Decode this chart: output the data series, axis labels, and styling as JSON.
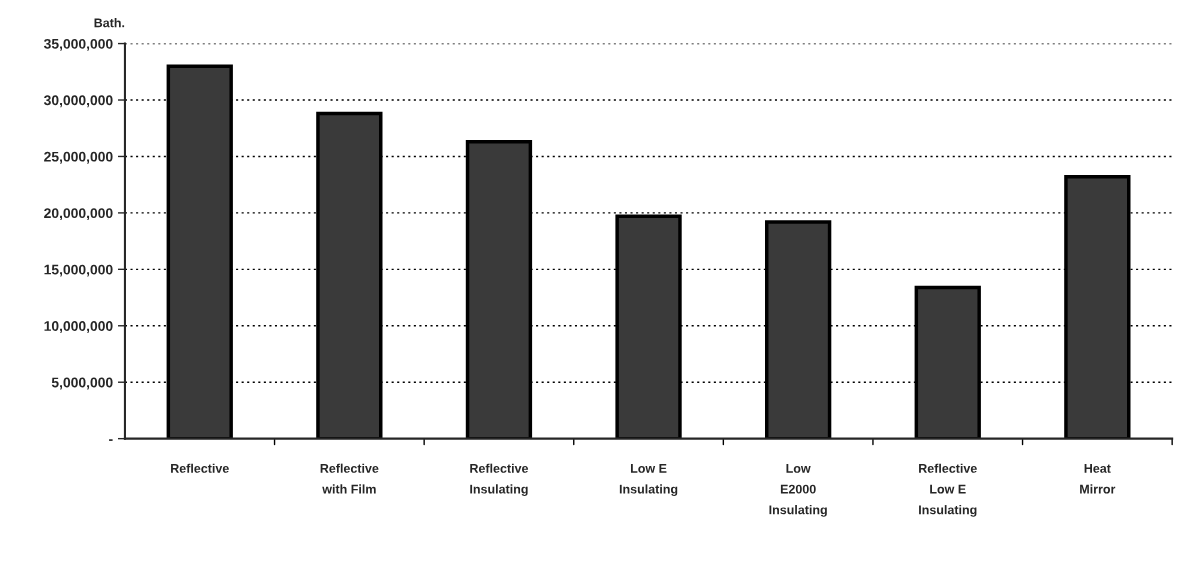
{
  "chart_data": {
    "type": "bar",
    "ylabel": "Bath.",
    "categories": [
      "Reflective",
      "Reflective\nwith Film",
      "Reflective\nInsulating",
      "Low E\nInsulating",
      "Low\nE2000\nInsulating",
      "Reflective\nLow E\nInsulating",
      "Heat\nMirror"
    ],
    "values": [
      33000000,
      28800000,
      26300000,
      19700000,
      19200000,
      13400000,
      23200000
    ],
    "color": "#3a3a3a",
    "ylim": [
      0,
      35000000
    ],
    "yticks": [
      {
        "value": 0,
        "label": "-"
      },
      {
        "value": 5000000,
        "label": "5,000,000"
      },
      {
        "value": 10000000,
        "label": "10,000,000"
      },
      {
        "value": 15000000,
        "label": "15,000,000"
      },
      {
        "value": 20000000,
        "label": "20,000,000"
      },
      {
        "value": 25000000,
        "label": "25,000,000"
      },
      {
        "value": 30000000,
        "label": "30,000,000"
      },
      {
        "value": 35000000,
        "label": "35,000,000"
      }
    ],
    "grid": "y"
  }
}
